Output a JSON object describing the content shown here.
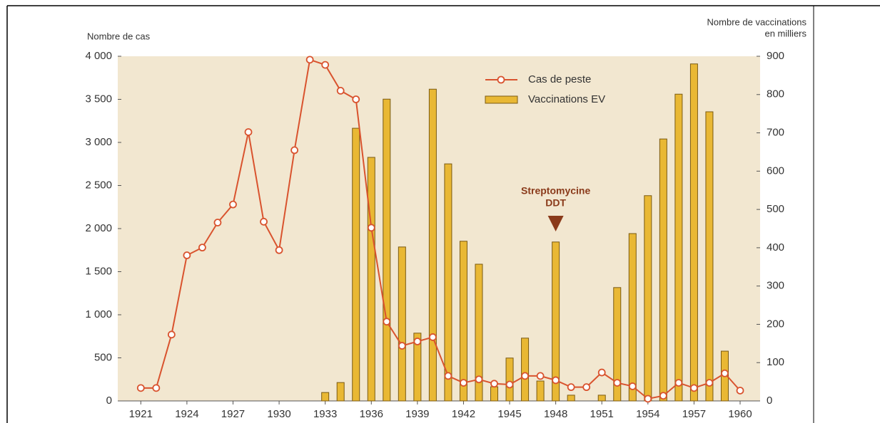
{
  "chart_data": {
    "type": "combo",
    "ylabel": "Nombre de cas",
    "y2label": [
      "Nombre de vaccinations",
      "en milliers"
    ],
    "x": [
      1921,
      1922,
      1923,
      1924,
      1925,
      1926,
      1927,
      1928,
      1929,
      1930,
      1931,
      1932,
      1933,
      1934,
      1935,
      1936,
      1937,
      1938,
      1939,
      1940,
      1941,
      1942,
      1943,
      1944,
      1945,
      1946,
      1947,
      1948,
      1949,
      1950,
      1951,
      1952,
      1953,
      1954,
      1955,
      1956,
      1957,
      1958,
      1959,
      1960
    ],
    "xlim": [
      1919.5,
      1961.3
    ],
    "xticks": [
      1921,
      1924,
      1927,
      1930,
      1933,
      1936,
      1939,
      1942,
      1945,
      1948,
      1951,
      1954,
      1957,
      1960
    ],
    "ylim": [
      0,
      4000
    ],
    "yticks": [
      0,
      500,
      {
        "value": 1000,
        "label": "1 000"
      },
      {
        "value": 1500,
        "label": "1 500"
      },
      {
        "value": 2000,
        "label": "2 000"
      },
      {
        "value": 2500,
        "label": "2 500"
      },
      {
        "value": 3000,
        "label": "3 000"
      },
      {
        "value": 3500,
        "label": "3 500"
      },
      {
        "value": 4000,
        "label": "4 000"
      }
    ],
    "y2lim": [
      0,
      900
    ],
    "y2ticks": [
      0,
      100,
      200,
      300,
      400,
      500,
      600,
      700,
      800,
      900
    ],
    "series": [
      {
        "name": "Cas de peste",
        "type": "line",
        "color": "#d9532e",
        "values": [
          150,
          150,
          770,
          1690,
          1780,
          2070,
          2280,
          3120,
          2080,
          1750,
          2910,
          3960,
          3900,
          3600,
          3500,
          2010,
          920,
          640,
          690,
          740,
          290,
          210,
          250,
          200,
          190,
          290,
          290,
          240,
          160,
          160,
          330,
          210,
          170,
          25,
          60,
          210,
          150,
          210,
          320,
          120
        ]
      },
      {
        "name": "Vaccinations EV",
        "type": "bar",
        "axis": "y2",
        "color": "#e9b834",
        "values": [
          null,
          null,
          null,
          null,
          null,
          null,
          null,
          null,
          null,
          null,
          null,
          null,
          22,
          48,
          712,
          636,
          788,
          402,
          177,
          814,
          619,
          417,
          357,
          37,
          112,
          164,
          52,
          415,
          15,
          null,
          15,
          296,
          437,
          536,
          684,
          801,
          880,
          755,
          130,
          null
        ]
      }
    ],
    "annotation": {
      "lines": [
        "Streptomycine",
        "DDT"
      ],
      "x": 1948
    }
  }
}
